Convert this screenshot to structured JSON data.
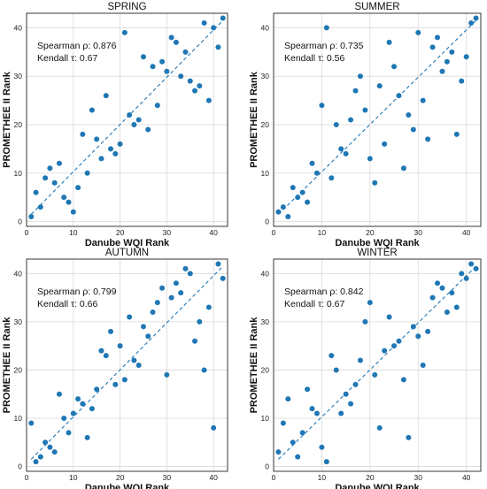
{
  "chart_data": [
    {
      "type": "scatter",
      "title": "SPRING",
      "xlabel": "Danube WQI Rank",
      "ylabel": "PROMETHEE II Rank",
      "xlim": [
        0,
        43
      ],
      "ylim": [
        -1,
        43
      ],
      "xticks": [
        0,
        10,
        20,
        30,
        40
      ],
      "yticks": [
        0,
        10,
        20,
        30,
        40
      ],
      "grid": true,
      "stats": [
        "Spearman ρ: 0.876",
        "Kendall τ: 0.67"
      ],
      "points": [
        [
          1,
          1
        ],
        [
          2,
          6
        ],
        [
          3,
          3
        ],
        [
          4,
          9
        ],
        [
          5,
          11
        ],
        [
          6,
          8
        ],
        [
          7,
          12
        ],
        [
          8,
          5
        ],
        [
          9,
          4
        ],
        [
          10,
          2
        ],
        [
          11,
          7
        ],
        [
          12,
          18
        ],
        [
          13,
          10
        ],
        [
          14,
          23
        ],
        [
          15,
          17
        ],
        [
          16,
          13
        ],
        [
          17,
          26
        ],
        [
          18,
          15
        ],
        [
          19,
          14
        ],
        [
          20,
          16
        ],
        [
          21,
          39
        ],
        [
          22,
          22
        ],
        [
          23,
          20
        ],
        [
          24,
          21
        ],
        [
          25,
          34
        ],
        [
          26,
          19
        ],
        [
          27,
          32
        ],
        [
          28,
          24
        ],
        [
          29,
          33
        ],
        [
          30,
          31
        ],
        [
          31,
          38
        ],
        [
          32,
          37
        ],
        [
          33,
          30
        ],
        [
          34,
          35
        ],
        [
          35,
          29
        ],
        [
          36,
          27
        ],
        [
          37,
          28
        ],
        [
          38,
          41
        ],
        [
          39,
          25
        ],
        [
          40,
          40
        ],
        [
          41,
          36
        ],
        [
          42,
          42
        ]
      ],
      "fit": [
        [
          1,
          1.5
        ],
        [
          42,
          41.5
        ]
      ]
    },
    {
      "type": "scatter",
      "title": "SUMMER",
      "xlabel": "Danube WQI Rank",
      "ylabel": "PROMETHEE II Rank",
      "xlim": [
        0,
        43
      ],
      "ylim": [
        -1,
        43
      ],
      "xticks": [
        0,
        10,
        20,
        30,
        40
      ],
      "yticks": [
        0,
        10,
        20,
        30,
        40
      ],
      "grid": true,
      "stats": [
        "Spearman ρ: 0.735",
        "Kendall τ: 0.56"
      ],
      "points": [
        [
          1,
          2
        ],
        [
          2,
          3
        ],
        [
          3,
          1
        ],
        [
          4,
          7
        ],
        [
          5,
          5
        ],
        [
          6,
          6
        ],
        [
          7,
          4
        ],
        [
          8,
          12
        ],
        [
          9,
          10
        ],
        [
          10,
          24
        ],
        [
          11,
          40
        ],
        [
          12,
          9
        ],
        [
          13,
          20
        ],
        [
          14,
          15
        ],
        [
          15,
          14
        ],
        [
          16,
          21
        ],
        [
          17,
          27
        ],
        [
          18,
          30
        ],
        [
          19,
          23
        ],
        [
          20,
          13
        ],
        [
          21,
          8
        ],
        [
          22,
          28
        ],
        [
          23,
          16
        ],
        [
          24,
          37
        ],
        [
          25,
          32
        ],
        [
          26,
          26
        ],
        [
          27,
          11
        ],
        [
          28,
          22
        ],
        [
          29,
          19
        ],
        [
          30,
          39
        ],
        [
          31,
          25
        ],
        [
          32,
          17
        ],
        [
          33,
          36
        ],
        [
          34,
          38
        ],
        [
          35,
          31
        ],
        [
          36,
          33
        ],
        [
          37,
          35
        ],
        [
          38,
          18
        ],
        [
          39,
          29
        ],
        [
          40,
          34
        ],
        [
          41,
          41
        ],
        [
          42,
          42
        ]
      ],
      "fit": [
        [
          1,
          1.5
        ],
        [
          42,
          41.5
        ]
      ]
    },
    {
      "type": "scatter",
      "title": "AUTUMN",
      "xlabel": "Danube WQI Rank",
      "ylabel": "PROMETHEE II Rank",
      "xlim": [
        0,
        43
      ],
      "ylim": [
        -1,
        43
      ],
      "xticks": [
        0,
        10,
        20,
        30,
        40
      ],
      "yticks": [
        0,
        10,
        20,
        30,
        40
      ],
      "grid": true,
      "stats": [
        "Spearman ρ: 0.799",
        "Kendall τ: 0.66"
      ],
      "points": [
        [
          1,
          9
        ],
        [
          2,
          1
        ],
        [
          3,
          2
        ],
        [
          4,
          5
        ],
        [
          5,
          4
        ],
        [
          6,
          3
        ],
        [
          7,
          15
        ],
        [
          8,
          10
        ],
        [
          9,
          7
        ],
        [
          10,
          11
        ],
        [
          11,
          14
        ],
        [
          12,
          13
        ],
        [
          13,
          6
        ],
        [
          14,
          12
        ],
        [
          15,
          16
        ],
        [
          16,
          24
        ],
        [
          17,
          23
        ],
        [
          18,
          28
        ],
        [
          19,
          17
        ],
        [
          20,
          25
        ],
        [
          21,
          18
        ],
        [
          22,
          31
        ],
        [
          23,
          22
        ],
        [
          24,
          21
        ],
        [
          25,
          29
        ],
        [
          26,
          27
        ],
        [
          27,
          32
        ],
        [
          28,
          34
        ],
        [
          29,
          37
        ],
        [
          30,
          19
        ],
        [
          31,
          35
        ],
        [
          32,
          38
        ],
        [
          33,
          36
        ],
        [
          34,
          41
        ],
        [
          35,
          40
        ],
        [
          36,
          26
        ],
        [
          37,
          30
        ],
        [
          38,
          20
        ],
        [
          39,
          33
        ],
        [
          40,
          8
        ],
        [
          41,
          42
        ],
        [
          42,
          39
        ]
      ],
      "fit": [
        [
          1,
          1.5
        ],
        [
          42,
          41.5
        ]
      ]
    },
    {
      "type": "scatter",
      "title": "WINTER",
      "xlabel": "Danube WQI Rank",
      "ylabel": "PROMETHEE II Rank",
      "xlim": [
        0,
        43
      ],
      "ylim": [
        -1,
        43
      ],
      "xticks": [
        0,
        10,
        20,
        30,
        40
      ],
      "yticks": [
        0,
        10,
        20,
        30,
        40
      ],
      "grid": true,
      "stats": [
        "Spearman ρ: 0.842",
        "Kendall τ: 0.67"
      ],
      "points": [
        [
          1,
          3
        ],
        [
          2,
          9
        ],
        [
          3,
          14
        ],
        [
          4,
          5
        ],
        [
          5,
          2
        ],
        [
          6,
          7
        ],
        [
          7,
          16
        ],
        [
          8,
          12
        ],
        [
          9,
          11
        ],
        [
          10,
          4
        ],
        [
          11,
          1
        ],
        [
          12,
          23
        ],
        [
          13,
          20
        ],
        [
          14,
          11
        ],
        [
          15,
          15
        ],
        [
          16,
          13
        ],
        [
          17,
          17
        ],
        [
          18,
          22
        ],
        [
          19,
          30
        ],
        [
          20,
          34
        ],
        [
          21,
          19
        ],
        [
          22,
          8
        ],
        [
          23,
          24
        ],
        [
          24,
          31
        ],
        [
          25,
          25
        ],
        [
          26,
          26
        ],
        [
          27,
          18
        ],
        [
          28,
          6
        ],
        [
          29,
          29
        ],
        [
          30,
          27
        ],
        [
          31,
          21
        ],
        [
          32,
          28
        ],
        [
          33,
          35
        ],
        [
          34,
          38
        ],
        [
          35,
          37
        ],
        [
          36,
          32
        ],
        [
          37,
          36
        ],
        [
          38,
          33
        ],
        [
          39,
          40
        ],
        [
          40,
          39
        ],
        [
          41,
          42
        ],
        [
          42,
          41
        ]
      ],
      "fit": [
        [
          1,
          1.5
        ],
        [
          42,
          41.5
        ]
      ]
    }
  ]
}
